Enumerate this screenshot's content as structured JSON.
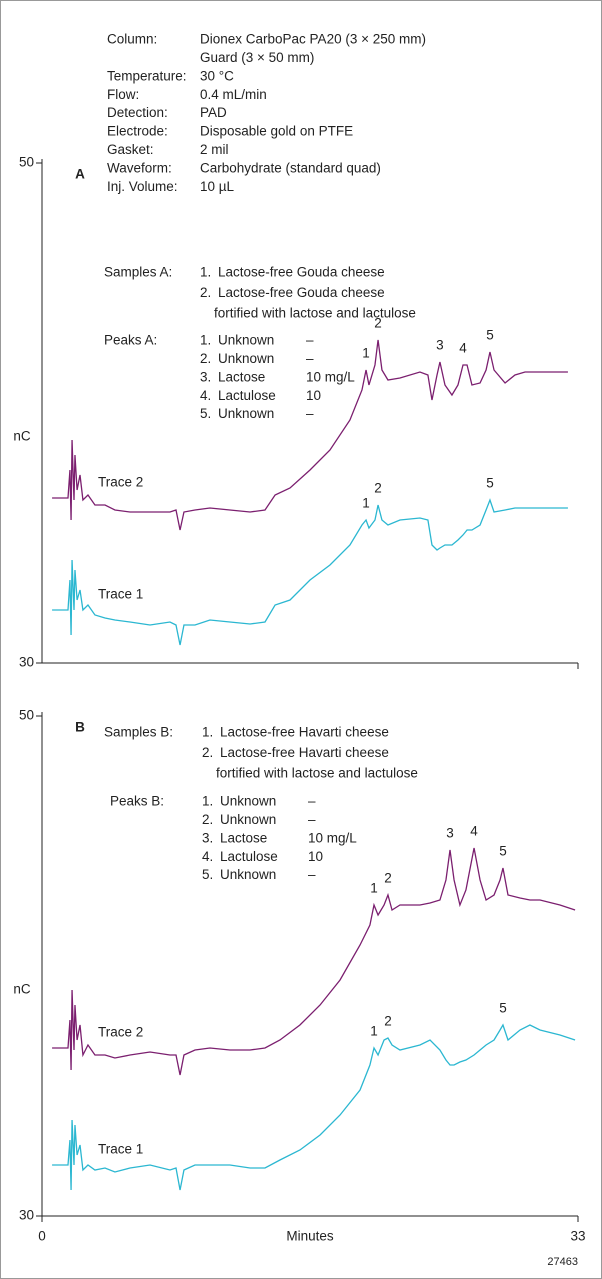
{
  "figure_id": "27463",
  "chart_data": [
    {
      "type": "line",
      "panel": "A",
      "ylabel": "nC",
      "xlim": [
        0,
        33
      ],
      "ylim": [
        30,
        50
      ],
      "yticks": [
        30,
        50
      ],
      "grid": false,
      "conditions": [
        {
          "label": "Column:",
          "lines": [
            "Dionex CarboPac PA20 (3 × 250 mm)",
            "Guard (3 × 50 mm)"
          ]
        },
        {
          "label": "Temperature:",
          "lines": [
            "30 °C"
          ]
        },
        {
          "label": "Flow:",
          "lines": [
            "0.4 mL/min"
          ]
        },
        {
          "label": "Detection:",
          "lines": [
            "PAD"
          ]
        },
        {
          "label": "Electrode:",
          "lines": [
            "Disposable gold on PTFE"
          ]
        },
        {
          "label": "Gasket:",
          "lines": [
            "2 mil"
          ]
        },
        {
          "label": "Waveform:",
          "lines": [
            "Carbohydrate (standard quad)"
          ]
        },
        {
          "label": "Inj. Volume:",
          "lines": [
            "10 µL"
          ]
        }
      ],
      "samples": {
        "label": "Samples A:",
        "items": [
          {
            "num": "1.",
            "lines": [
              "Lactose-free Gouda cheese"
            ]
          },
          {
            "num": "2.",
            "lines": [
              "Lactose-free Gouda cheese",
              "fortified with lactose and lactulose"
            ]
          }
        ]
      },
      "peaks": {
        "label": "Peaks A:",
        "rows": [
          [
            "1.",
            "Unknown",
            "–"
          ],
          [
            "2.",
            "Unknown",
            "–"
          ],
          [
            "3.",
            "Lactose",
            "10 mg/L"
          ],
          [
            "4.",
            "Lactulose",
            "10"
          ],
          [
            "5.",
            "Unknown",
            "–"
          ]
        ]
      },
      "x": [
        0.62,
        1.6,
        1.72,
        1.79,
        1.85,
        1.97,
        2.03,
        2.16,
        2.34,
        2.52,
        2.83,
        3.26,
        3.88,
        4.49,
        5.42,
        6.65,
        7.88,
        8.25,
        8.5,
        8.74,
        9.42,
        10.34,
        11.57,
        12.81,
        13.73,
        14.35,
        15.27,
        16.5,
        17.73,
        18.96,
        19.7,
        19.95,
        20.13,
        20.5,
        20.69,
        20.93,
        21.3,
        22.04,
        23.27,
        23.76,
        24.01,
        24.32,
        24.5,
        24.81,
        25.24,
        25.61,
        25.92,
        26.17,
        26.47,
        26.97,
        27.34,
        27.58,
        27.83,
        28.51,
        29.12,
        29.74,
        30.97,
        32.38
      ],
      "series": [
        {
          "name": "Trace 2",
          "color": "#7b1f6f",
          "values": [
            36.6,
            36.6,
            37.72,
            35.72,
            38.92,
            36.52,
            38.32,
            36.92,
            37.52,
            36.52,
            36.72,
            36.32,
            36.32,
            36.12,
            36.04,
            36.04,
            36.04,
            36.12,
            35.32,
            36.04,
            36.12,
            36.2,
            36.12,
            36.04,
            36.12,
            36.72,
            37.0,
            37.72,
            38.52,
            39.72,
            40.92,
            41.72,
            41.12,
            41.92,
            42.92,
            41.72,
            41.32,
            41.4,
            41.64,
            41.52,
            40.52,
            41.52,
            42.04,
            41.12,
            40.72,
            41.12,
            41.92,
            41.92,
            41.12,
            41.2,
            41.72,
            42.44,
            41.72,
            41.2,
            41.52,
            41.64,
            41.64,
            41.64
          ],
          "peaks": [
            {
              "label": "1",
              "x": 19.95
            },
            {
              "label": "2",
              "x": 20.69
            },
            {
              "label": "3",
              "x": 24.5
            },
            {
              "label": "4",
              "x": 25.92
            },
            {
              "label": "5",
              "x": 27.58
            }
          ]
        },
        {
          "name": "Trace 1",
          "color": "#2bb7d1",
          "values": [
            32.12,
            32.12,
            33.32,
            31.12,
            34.12,
            32.12,
            33.72,
            32.52,
            32.92,
            32.12,
            32.32,
            31.92,
            31.8,
            31.72,
            31.64,
            31.52,
            31.64,
            31.52,
            30.72,
            31.52,
            31.52,
            31.72,
            31.64,
            31.56,
            31.64,
            32.32,
            32.52,
            33.32,
            33.92,
            34.72,
            35.52,
            35.72,
            35.4,
            35.72,
            36.32,
            35.72,
            35.52,
            35.72,
            35.8,
            35.72,
            34.72,
            34.52,
            34.6,
            34.72,
            34.72,
            34.92,
            35.12,
            35.32,
            35.32,
            35.52,
            36.12,
            36.52,
            36.04,
            36.12,
            36.2,
            36.2,
            36.2,
            36.2
          ],
          "peaks": [
            {
              "label": "1",
              "x": 19.95
            },
            {
              "label": "2",
              "x": 20.69
            },
            {
              "label": "5",
              "x": 27.58
            }
          ]
        }
      ]
    },
    {
      "type": "line",
      "panel": "B",
      "ylabel": "nC",
      "xlabel": "Minutes",
      "xlim": [
        0,
        33
      ],
      "xticks": [
        0,
        33
      ],
      "ylim": [
        30,
        50
      ],
      "yticks": [
        30,
        50
      ],
      "grid": false,
      "samples": {
        "label": "Samples B:",
        "items": [
          {
            "num": "1.",
            "lines": [
              "Lactose-free Havarti cheese"
            ]
          },
          {
            "num": "2.",
            "lines": [
              "Lactose-free Havarti cheese",
              "fortified with lactose and lactulose"
            ]
          }
        ]
      },
      "peaks": {
        "label": "Peaks B:",
        "rows": [
          [
            "1.",
            "Unknown",
            "–"
          ],
          [
            "2.",
            "Unknown",
            "–"
          ],
          [
            "3.",
            "Lactose",
            "10 mg/L"
          ],
          [
            "4.",
            "Lactulose",
            "10"
          ],
          [
            "5.",
            "Unknown",
            "–"
          ]
        ]
      },
      "x": [
        0.62,
        1.6,
        1.72,
        1.79,
        1.85,
        1.97,
        2.03,
        2.16,
        2.34,
        2.52,
        2.83,
        3.26,
        3.88,
        4.49,
        5.42,
        6.65,
        7.88,
        8.25,
        8.5,
        8.74,
        9.42,
        10.34,
        11.57,
        12.81,
        13.73,
        14.65,
        15.88,
        17.12,
        18.35,
        19.58,
        20.19,
        20.44,
        20.69,
        21.06,
        21.3,
        21.55,
        22.04,
        23.27,
        23.89,
        24.5,
        24.87,
        25.12,
        25.37,
        25.73,
        26.1,
        26.6,
        26.97,
        27.34,
        27.83,
        28.2,
        28.38,
        28.69,
        29.43,
        30.04,
        30.66,
        31.89,
        32.82
      ],
      "series": [
        {
          "name": "Trace 2",
          "color": "#7b1f6f",
          "values": [
            36.72,
            36.72,
            37.84,
            35.84,
            39.04,
            36.64,
            38.44,
            37.04,
            37.64,
            36.44,
            36.84,
            36.44,
            36.44,
            36.32,
            36.44,
            36.56,
            36.44,
            36.44,
            35.64,
            36.44,
            36.64,
            36.72,
            36.64,
            36.64,
            36.72,
            37.04,
            37.64,
            38.44,
            39.44,
            40.84,
            41.64,
            42.44,
            42.04,
            42.44,
            42.84,
            42.24,
            42.44,
            42.44,
            42.52,
            42.64,
            43.44,
            44.64,
            43.44,
            42.44,
            43.04,
            44.72,
            43.44,
            42.64,
            42.84,
            43.44,
            43.92,
            42.84,
            42.72,
            42.64,
            42.64,
            42.44,
            42.24
          ],
          "peaks": [
            {
              "label": "1",
              "x": 20.44
            },
            {
              "label": "2",
              "x": 21.3
            },
            {
              "label": "3",
              "x": 25.12
            },
            {
              "label": "4",
              "x": 26.6
            },
            {
              "label": "5",
              "x": 28.38
            }
          ]
        },
        {
          "name": "Trace 1",
          "color": "#2bb7d1",
          "values": [
            32.04,
            32.04,
            33.04,
            31.04,
            33.84,
            32.04,
            33.64,
            32.44,
            32.84,
            31.84,
            32.04,
            31.84,
            31.92,
            31.76,
            31.92,
            32.04,
            31.84,
            31.92,
            31.04,
            31.84,
            32.04,
            32.04,
            32.04,
            31.92,
            31.92,
            32.24,
            32.64,
            33.24,
            34.04,
            35.04,
            36.04,
            36.72,
            36.44,
            37.04,
            37.12,
            36.84,
            36.64,
            36.84,
            37.04,
            36.64,
            36.24,
            36.04,
            36.04,
            36.16,
            36.24,
            36.44,
            36.64,
            36.84,
            37.04,
            37.44,
            37.64,
            37.04,
            37.44,
            37.64,
            37.44,
            37.24,
            37.04
          ],
          "peaks": [
            {
              "label": "1",
              "x": 20.44
            },
            {
              "label": "2",
              "x": 21.3
            },
            {
              "label": "5",
              "x": 28.38
            }
          ]
        }
      ]
    }
  ]
}
